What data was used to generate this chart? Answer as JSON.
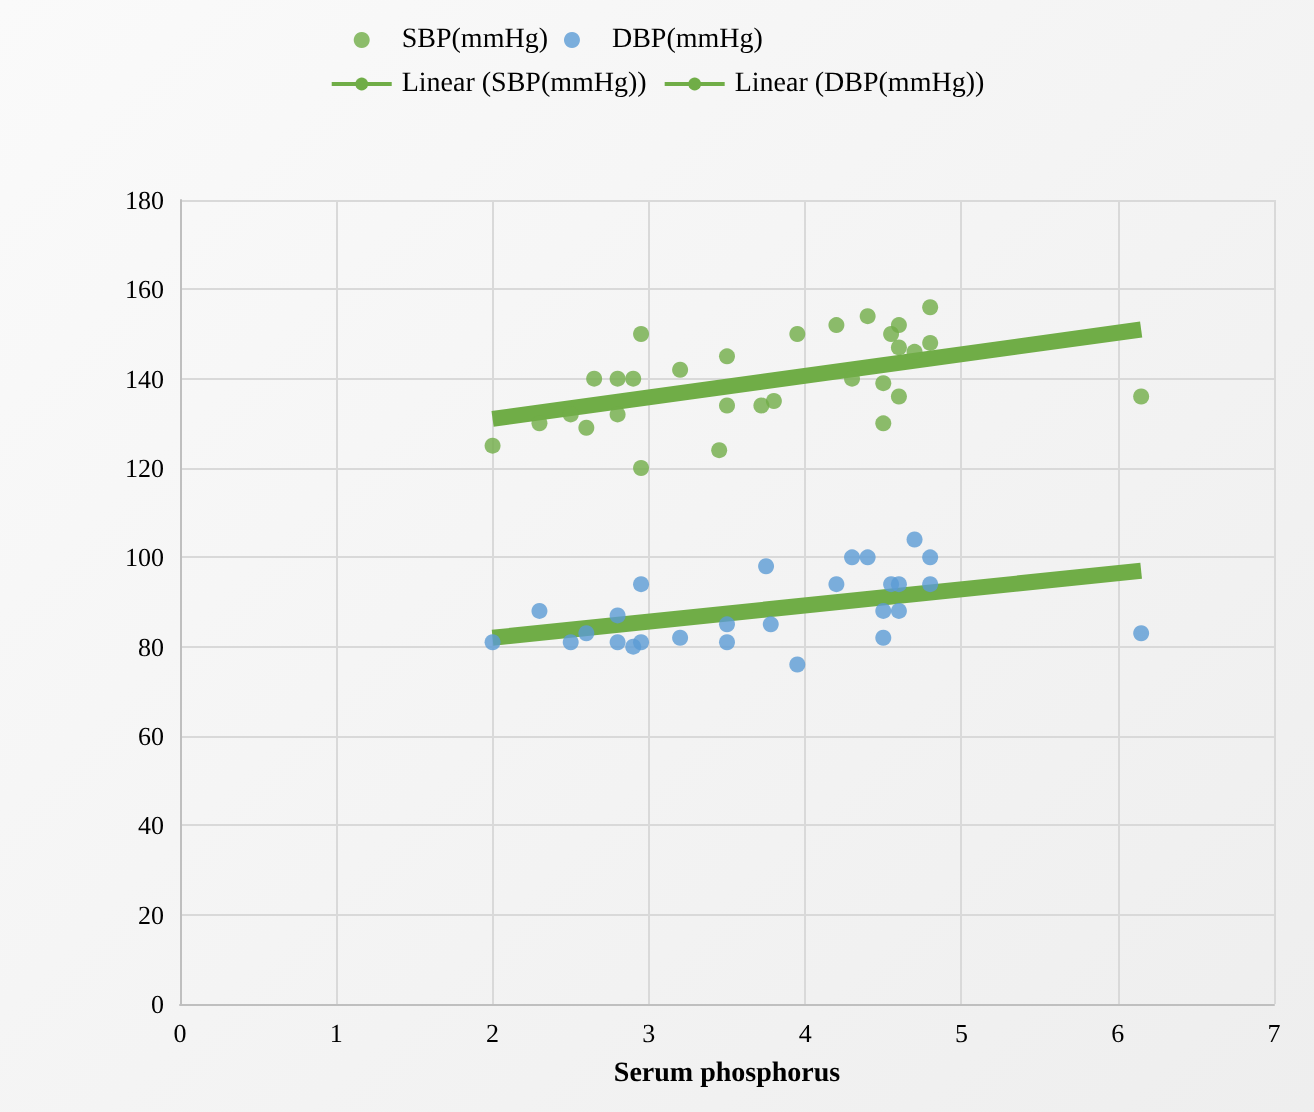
{
  "chart_data": {
    "type": "scatter",
    "xlabel": "Serum phosphorus",
    "xlim": [
      0,
      7
    ],
    "xticks": [
      0,
      1,
      2,
      3,
      4,
      5,
      6,
      7
    ],
    "ylim": [
      0,
      180
    ],
    "yticks": [
      0,
      20,
      40,
      60,
      80,
      100,
      120,
      140,
      160,
      180
    ],
    "grid": true,
    "legend": "top",
    "marker": "circle",
    "series": [
      {
        "name": "SBP(mmHg)",
        "color": "#70ad47",
        "x": [
          2.0,
          2.3,
          2.5,
          2.6,
          2.65,
          2.8,
          2.8,
          2.9,
          2.95,
          2.95,
          3.2,
          3.5,
          3.5,
          3.45,
          3.72,
          3.8,
          3.95,
          4.2,
          4.3,
          4.4,
          4.5,
          4.5,
          4.55,
          4.6,
          4.6,
          4.6,
          4.7,
          4.8,
          4.8,
          6.15
        ],
        "values": [
          125,
          130,
          132,
          129,
          140,
          140,
          132,
          140,
          150,
          120,
          142,
          145,
          134,
          124,
          134,
          135,
          150,
          152,
          140,
          154,
          130,
          139,
          150,
          152,
          136,
          147,
          146,
          148,
          156,
          136
        ]
      },
      {
        "name": "DBP(mmHg)",
        "color": "#5b9bd5",
        "x": [
          2.0,
          2.3,
          2.5,
          2.6,
          2.8,
          2.8,
          2.9,
          2.95,
          2.95,
          3.2,
          3.5,
          3.5,
          3.75,
          3.78,
          3.95,
          4.2,
          4.3,
          4.4,
          4.5,
          4.5,
          4.55,
          4.6,
          4.6,
          4.7,
          4.8,
          4.8,
          6.15
        ],
        "values": [
          81,
          88,
          81,
          83,
          87,
          81,
          80,
          81,
          94,
          82,
          81,
          85,
          98,
          85,
          76,
          94,
          100,
          100,
          88,
          82,
          94,
          94,
          88,
          104,
          100,
          94,
          83
        ]
      },
      {
        "name": "Linear (SBP(mmHg))",
        "type": "line",
        "color": "#70ad47",
        "marker": "none",
        "x": [
          2.0,
          6.15
        ],
        "values": [
          131,
          151
        ]
      },
      {
        "name": "Linear (DBP(mmHg))",
        "type": "line",
        "color": "#70ad47",
        "marker": "none",
        "x": [
          2.0,
          6.15
        ],
        "values": [
          82,
          97
        ]
      }
    ]
  }
}
